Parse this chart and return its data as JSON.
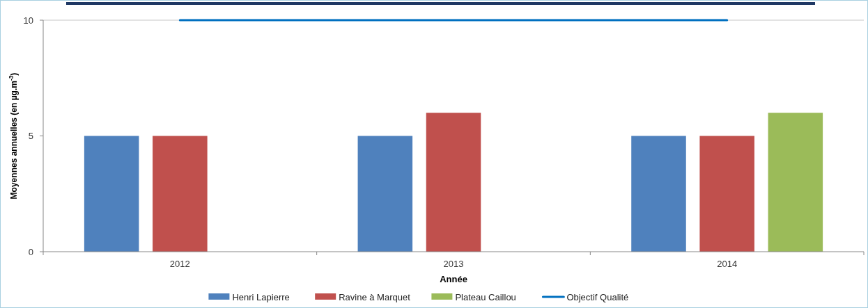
{
  "chart_data": {
    "type": "bar",
    "xlabel": "Année",
    "ylabel": "Moyennes annuelles (en µg.m$^{-3}$)",
    "categories": [
      "2012",
      "2013",
      "2014"
    ],
    "series": [
      {
        "name": "Henri Lapierre",
        "color": "#4f81bd",
        "values": [
          5,
          5,
          5
        ]
      },
      {
        "name": "Ravine à Marquet",
        "color": "#c0504d",
        "values": [
          5,
          6,
          5
        ]
      },
      {
        "name": "Plateau Caillou",
        "color": "#9bbb59",
        "values": [
          null,
          null,
          6
        ]
      },
      {
        "name": "Objectif Qualité",
        "type": "line",
        "color": "#0070c0",
        "values": [
          10,
          10,
          10
        ]
      }
    ],
    "ylim": [
      0,
      10
    ],
    "yticks": [
      0,
      5,
      10
    ],
    "legend": "bottom"
  }
}
